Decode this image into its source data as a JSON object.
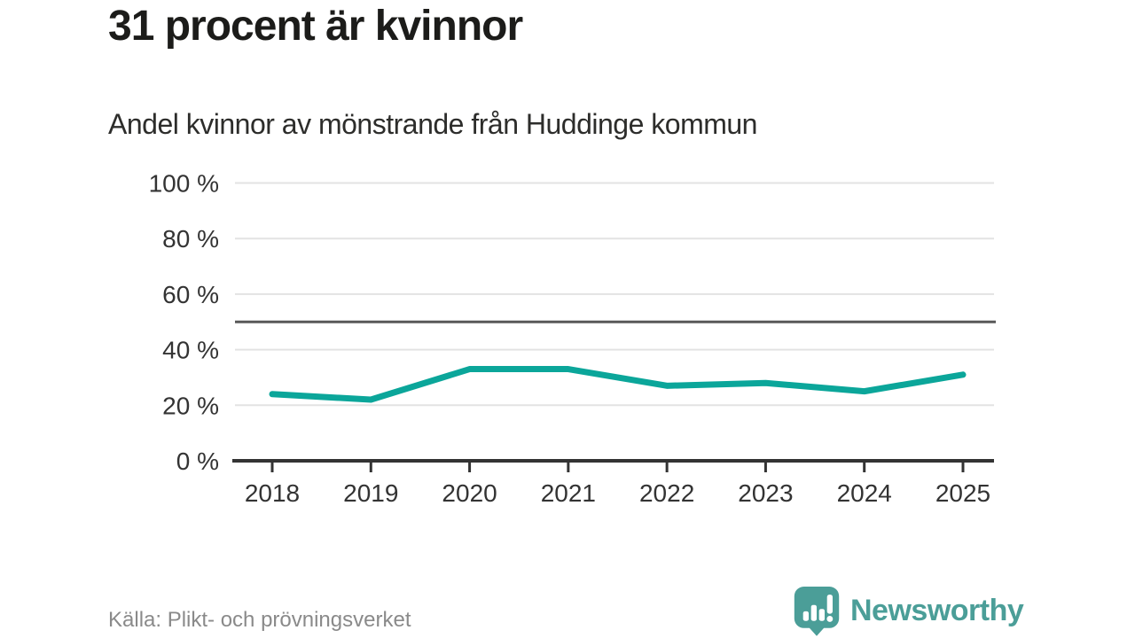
{
  "header": {
    "title": "31 procent är kvinnor",
    "subtitle": "Andel kvinnor av mönstrande från Huddinge kommun"
  },
  "footer": {
    "source": "Källa: Plikt- och prövningsverket",
    "brand": "Newsworthy",
    "brand_icon": "newsworthy-speech-bubble-barchart-icon"
  },
  "colors": {
    "line": "#0ba69a",
    "reference_line": "#595959",
    "grid": "#e3e3e3",
    "axis": "#333333",
    "tick_label": "#333333",
    "title_text": "#1c1c1a",
    "muted_text": "#8a8a8a",
    "brand_teal": "#4b9e98"
  },
  "chart_data": {
    "type": "line",
    "title": "31 procent är kvinnor",
    "subtitle": "Andel kvinnor av mönstrande från Huddinge kommun",
    "x": [
      "2018",
      "2019",
      "2020",
      "2021",
      "2022",
      "2023",
      "2024",
      "2025"
    ],
    "series": [
      {
        "name": "Andel kvinnor av mönstrande",
        "values": [
          24,
          22,
          33,
          33,
          27,
          28,
          25,
          31
        ]
      }
    ],
    "xlabel": "",
    "ylabel": "",
    "ylim": [
      0,
      100
    ],
    "yticks": [
      0,
      20,
      40,
      60,
      80,
      100
    ],
    "ytick_suffix": " %",
    "reference_line": 50,
    "grid": true,
    "legend": false,
    "source": "Källa: Plikt- och prövningsverket"
  }
}
